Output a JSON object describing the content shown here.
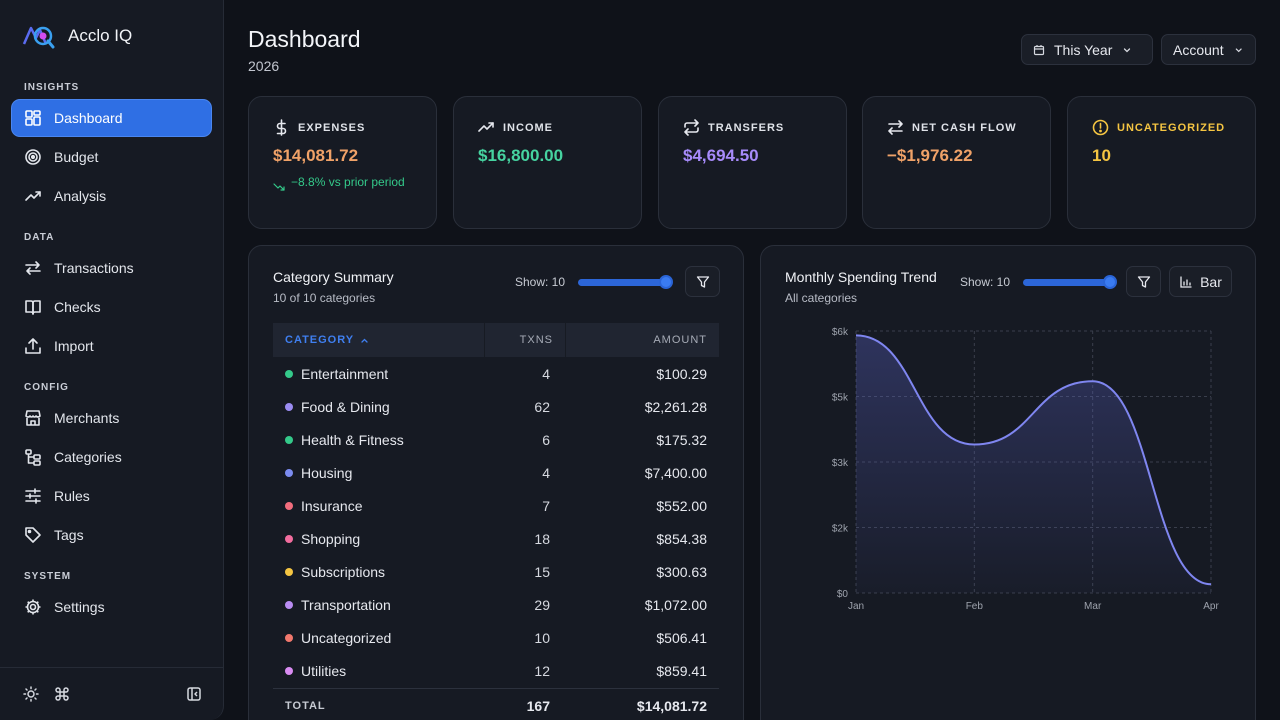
{
  "brand": {
    "name": "Acclo IQ"
  },
  "sidebar": {
    "sections": [
      {
        "title": "INSIGHTS"
      },
      {
        "title": "DATA"
      },
      {
        "title": "CONFIG"
      },
      {
        "title": "SYSTEM"
      }
    ],
    "items": [
      {
        "label": "Dashboard",
        "icon": "grid-icon",
        "active": true
      },
      {
        "label": "Budget",
        "icon": "target-icon"
      },
      {
        "label": "Analysis",
        "icon": "trend-up-icon"
      },
      {
        "label": "Transactions",
        "icon": "arrows-left-right-icon"
      },
      {
        "label": "Checks",
        "icon": "book-icon"
      },
      {
        "label": "Import",
        "icon": "upload-icon"
      },
      {
        "label": "Merchants",
        "icon": "store-icon"
      },
      {
        "label": "Categories",
        "icon": "hierarchy-icon"
      },
      {
        "label": "Rules",
        "icon": "sliders-icon"
      },
      {
        "label": "Tags",
        "icon": "tag-icon"
      },
      {
        "label": "Settings",
        "icon": "gear-icon"
      }
    ]
  },
  "header": {
    "title": "Dashboard",
    "subtitle": "2026",
    "period_label": "This Year",
    "account_label": "Account"
  },
  "stats": [
    {
      "label": "EXPENSES",
      "value": "$14,081.72",
      "delta": "−8.8% vs prior period",
      "value_color": "#f0a268",
      "icon": "dollar-icon"
    },
    {
      "label": "INCOME",
      "value": "$16,800.00",
      "value_color": "#46d3a0",
      "icon": "trend-up-icon"
    },
    {
      "label": "TRANSFERS",
      "value": "$4,694.50",
      "value_color": "#a78bfa",
      "icon": "repeat-icon"
    },
    {
      "label": "NET CASH FLOW",
      "value": "−$1,976.22",
      "value_color": "#f0a268",
      "icon": "arrows-left-right-icon"
    },
    {
      "label": "UNCATEGORIZED",
      "value": "10",
      "value_color": "#f5c542",
      "label_color": "#f5c542",
      "icon": "alert-circle-icon"
    }
  ],
  "category_summary": {
    "title": "Category Summary",
    "subtitle": "10 of 10 categories",
    "show_label": "Show: 10",
    "show_value": 1.0,
    "columns": {
      "category": "CATEGORY",
      "txns": "TXNS",
      "amount": "AMOUNT"
    },
    "rows": [
      {
        "category": "Entertainment",
        "txns": "4",
        "amount": "$100.29",
        "color": "#34c98a"
      },
      {
        "category": "Food & Dining",
        "txns": "62",
        "amount": "$2,261.28",
        "color": "#9b8cf2"
      },
      {
        "category": "Health & Fitness",
        "txns": "6",
        "amount": "$175.32",
        "color": "#34c98a"
      },
      {
        "category": "Housing",
        "txns": "4",
        "amount": "$7,400.00",
        "color": "#7c8cf0"
      },
      {
        "category": "Insurance",
        "txns": "7",
        "amount": "$552.00",
        "color": "#f26d7d"
      },
      {
        "category": "Shopping",
        "txns": "18",
        "amount": "$854.38",
        "color": "#f26d9e"
      },
      {
        "category": "Subscriptions",
        "txns": "15",
        "amount": "$300.63",
        "color": "#f5c542"
      },
      {
        "category": "Transportation",
        "txns": "29",
        "amount": "$1,072.00",
        "color": "#b98cf2"
      },
      {
        "category": "Uncategorized",
        "txns": "10",
        "amount": "$506.41",
        "color": "#f2786d"
      },
      {
        "category": "Utilities",
        "txns": "12",
        "amount": "$859.41",
        "color": "#d98cf2"
      }
    ],
    "total": {
      "label": "TOTAL",
      "txns": "167",
      "amount": "$14,081.72"
    }
  },
  "trend": {
    "title": "Monthly Spending Trend",
    "subtitle": "All categories",
    "show_label": "Show: 10",
    "show_value": 1.0,
    "chart_type_label": "Bar"
  },
  "chart_data": {
    "type": "area",
    "x": [
      "Jan",
      "Feb",
      "Mar",
      "Apr"
    ],
    "series": [
      {
        "values": [
          5900,
          3400,
          4850,
          200
        ]
      }
    ],
    "ylim": [
      0,
      6000
    ],
    "yticks": [
      "$0",
      "$2k",
      "$3k",
      "$5k",
      "$6k"
    ],
    "grid": true,
    "color": "#7f86f0"
  }
}
